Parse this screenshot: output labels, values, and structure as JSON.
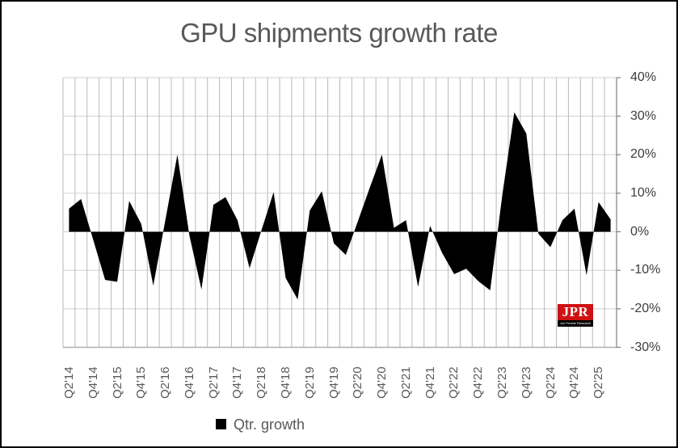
{
  "title": "GPU shipments growth rate",
  "legend": {
    "label": "Qtr. growth",
    "marker_color": "#000000"
  },
  "logo": {
    "text": "JPR",
    "subtext": "Jon Peddie Research",
    "bg_color": "#cf1112",
    "strip_color": "#000000",
    "text_color": "#ffffff"
  },
  "colors": {
    "title_text": "#595959",
    "axis_label_text": "#3d3d3d",
    "x_label_text": "#595959",
    "gridline_vertical": "#b9b9b9",
    "gridline_horizontal": "#d9d9d9",
    "right_axis": "#808080",
    "bottom_axis": "#b0b0b0",
    "series_fill": "#000000",
    "background": "#ffffff",
    "outer_border": "#000000"
  },
  "chart_data": {
    "type": "area",
    "title": "GPU shipments growth rate",
    "legend_entries": [
      "Qtr. growth"
    ],
    "legend_position": "bottom",
    "grid": true,
    "y_axis_side": "right",
    "ylim": [
      -30,
      40
    ],
    "y_tick_labels": [
      "40%",
      "30%",
      "20%",
      "10%",
      "0%",
      "-10%",
      "-20%",
      "-30%"
    ],
    "y_tick_values": [
      40,
      30,
      20,
      10,
      0,
      -10,
      -20,
      -30
    ],
    "x_tick_labels": [
      "Q2'14",
      "Q4'14",
      "Q2'15",
      "Q4'15",
      "Q2'16",
      "Q4'16",
      "Q2'17",
      "Q4'17",
      "Q2'18",
      "Q4'18",
      "Q2'19",
      "Q4'19",
      "Q2'20",
      "Q4'20",
      "Q2'21",
      "Q4'21",
      "Q2'22",
      "Q4'22",
      "Q2'23",
      "Q4'23",
      "Q2'24",
      "Q4'24",
      "Q2'25"
    ],
    "x": [
      "Q2'14",
      "Q3'14",
      "Q4'14",
      "Q1'15",
      "Q2'15",
      "Q3'15",
      "Q4'15",
      "Q1'16",
      "Q2'16",
      "Q3'16",
      "Q4'16",
      "Q1'17",
      "Q2'17",
      "Q3'17",
      "Q4'17",
      "Q1'18",
      "Q2'18",
      "Q3'18",
      "Q4'18",
      "Q1'19",
      "Q2'19",
      "Q3'19",
      "Q4'19",
      "Q1'20",
      "Q2'20",
      "Q3'20",
      "Q4'20",
      "Q1'21",
      "Q2'21",
      "Q3'21",
      "Q4'21",
      "Q1'22",
      "Q2'22",
      "Q3'22",
      "Q4'22",
      "Q1'23",
      "Q2'23",
      "Q3'23",
      "Q4'23",
      "Q1'24",
      "Q2'24",
      "Q3'24",
      "Q4'24",
      "Q1'25",
      "Q2'25",
      "Q3'25"
    ],
    "values": [
      6,
      8.5,
      -2,
      -12.5,
      -13,
      8,
      2,
      -14,
      3,
      20,
      -1,
      -15,
      7,
      9,
      3,
      -9.5,
      0.5,
      10.3,
      -12,
      -17.6,
      5.5,
      10.5,
      -3,
      -6,
      2.7,
      11.5,
      20,
      1,
      3,
      -14.3,
      1.5,
      -5.5,
      -11,
      -9.6,
      -12.8,
      -15.2,
      9.4,
      31,
      25.5,
      -0.5,
      -4,
      3,
      6,
      -11.3,
      7.7,
      3.2
    ],
    "unit": "%"
  }
}
